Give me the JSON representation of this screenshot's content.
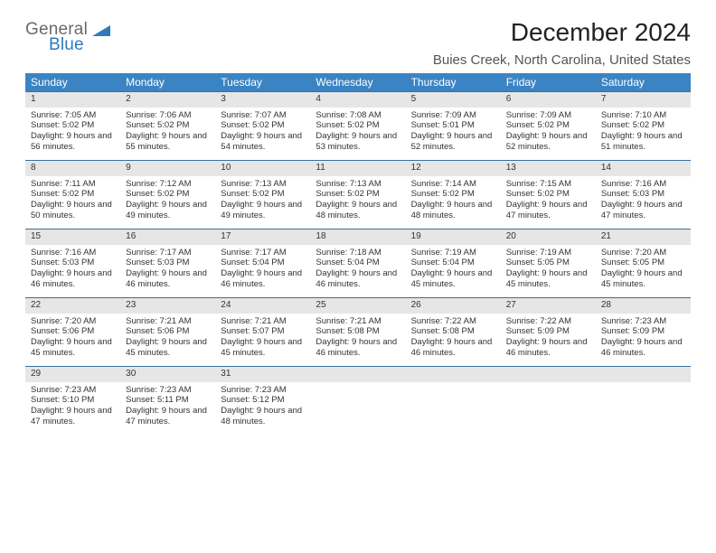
{
  "logo": {
    "line1": "General",
    "line2": "Blue"
  },
  "title": "December 2024",
  "location": "Buies Creek, North Carolina, United States",
  "header_bg": "#3b84c4",
  "daynum_bg": "#e7e6e6",
  "border_color": "#3b6f9c",
  "weekdays": [
    "Sunday",
    "Monday",
    "Tuesday",
    "Wednesday",
    "Thursday",
    "Friday",
    "Saturday"
  ],
  "weeks": [
    [
      {
        "n": "1",
        "sr": "7:05 AM",
        "ss": "5:02 PM",
        "dl": "9 hours and 56 minutes."
      },
      {
        "n": "2",
        "sr": "7:06 AM",
        "ss": "5:02 PM",
        "dl": "9 hours and 55 minutes."
      },
      {
        "n": "3",
        "sr": "7:07 AM",
        "ss": "5:02 PM",
        "dl": "9 hours and 54 minutes."
      },
      {
        "n": "4",
        "sr": "7:08 AM",
        "ss": "5:02 PM",
        "dl": "9 hours and 53 minutes."
      },
      {
        "n": "5",
        "sr": "7:09 AM",
        "ss": "5:01 PM",
        "dl": "9 hours and 52 minutes."
      },
      {
        "n": "6",
        "sr": "7:09 AM",
        "ss": "5:02 PM",
        "dl": "9 hours and 52 minutes."
      },
      {
        "n": "7",
        "sr": "7:10 AM",
        "ss": "5:02 PM",
        "dl": "9 hours and 51 minutes."
      }
    ],
    [
      {
        "n": "8",
        "sr": "7:11 AM",
        "ss": "5:02 PM",
        "dl": "9 hours and 50 minutes."
      },
      {
        "n": "9",
        "sr": "7:12 AM",
        "ss": "5:02 PM",
        "dl": "9 hours and 49 minutes."
      },
      {
        "n": "10",
        "sr": "7:13 AM",
        "ss": "5:02 PM",
        "dl": "9 hours and 49 minutes."
      },
      {
        "n": "11",
        "sr": "7:13 AM",
        "ss": "5:02 PM",
        "dl": "9 hours and 48 minutes."
      },
      {
        "n": "12",
        "sr": "7:14 AM",
        "ss": "5:02 PM",
        "dl": "9 hours and 48 minutes."
      },
      {
        "n": "13",
        "sr": "7:15 AM",
        "ss": "5:02 PM",
        "dl": "9 hours and 47 minutes."
      },
      {
        "n": "14",
        "sr": "7:16 AM",
        "ss": "5:03 PM",
        "dl": "9 hours and 47 minutes."
      }
    ],
    [
      {
        "n": "15",
        "sr": "7:16 AM",
        "ss": "5:03 PM",
        "dl": "9 hours and 46 minutes."
      },
      {
        "n": "16",
        "sr": "7:17 AM",
        "ss": "5:03 PM",
        "dl": "9 hours and 46 minutes."
      },
      {
        "n": "17",
        "sr": "7:17 AM",
        "ss": "5:04 PM",
        "dl": "9 hours and 46 minutes."
      },
      {
        "n": "18",
        "sr": "7:18 AM",
        "ss": "5:04 PM",
        "dl": "9 hours and 46 minutes."
      },
      {
        "n": "19",
        "sr": "7:19 AM",
        "ss": "5:04 PM",
        "dl": "9 hours and 45 minutes."
      },
      {
        "n": "20",
        "sr": "7:19 AM",
        "ss": "5:05 PM",
        "dl": "9 hours and 45 minutes."
      },
      {
        "n": "21",
        "sr": "7:20 AM",
        "ss": "5:05 PM",
        "dl": "9 hours and 45 minutes."
      }
    ],
    [
      {
        "n": "22",
        "sr": "7:20 AM",
        "ss": "5:06 PM",
        "dl": "9 hours and 45 minutes."
      },
      {
        "n": "23",
        "sr": "7:21 AM",
        "ss": "5:06 PM",
        "dl": "9 hours and 45 minutes."
      },
      {
        "n": "24",
        "sr": "7:21 AM",
        "ss": "5:07 PM",
        "dl": "9 hours and 45 minutes."
      },
      {
        "n": "25",
        "sr": "7:21 AM",
        "ss": "5:08 PM",
        "dl": "9 hours and 46 minutes."
      },
      {
        "n": "26",
        "sr": "7:22 AM",
        "ss": "5:08 PM",
        "dl": "9 hours and 46 minutes."
      },
      {
        "n": "27",
        "sr": "7:22 AM",
        "ss": "5:09 PM",
        "dl": "9 hours and 46 minutes."
      },
      {
        "n": "28",
        "sr": "7:23 AM",
        "ss": "5:09 PM",
        "dl": "9 hours and 46 minutes."
      }
    ],
    [
      {
        "n": "29",
        "sr": "7:23 AM",
        "ss": "5:10 PM",
        "dl": "9 hours and 47 minutes."
      },
      {
        "n": "30",
        "sr": "7:23 AM",
        "ss": "5:11 PM",
        "dl": "9 hours and 47 minutes."
      },
      {
        "n": "31",
        "sr": "7:23 AM",
        "ss": "5:12 PM",
        "dl": "9 hours and 48 minutes."
      },
      {
        "empty": true
      },
      {
        "empty": true
      },
      {
        "empty": true
      },
      {
        "empty": true
      }
    ]
  ],
  "labels": {
    "sunrise": "Sunrise:",
    "sunset": "Sunset:",
    "daylight": "Daylight:"
  }
}
